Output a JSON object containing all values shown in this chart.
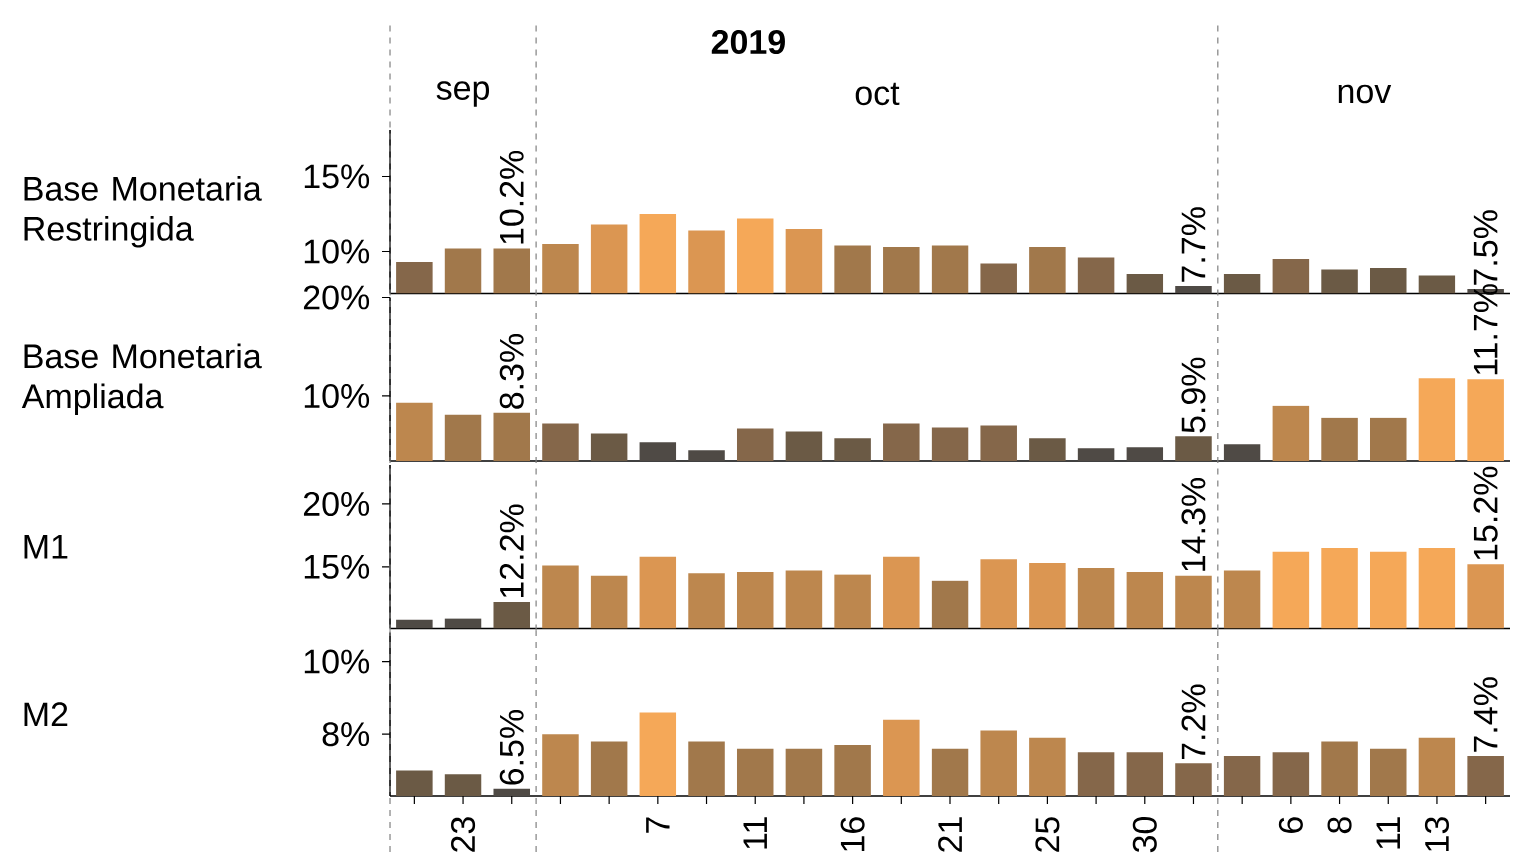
{
  "chart_data": [
    {
      "type": "bar",
      "ylabel": "Base Monetaria Restringida",
      "annotations": [
        "2019",
        "sep",
        "oct",
        "nov"
      ],
      "categories": [
        null,
        "23",
        null,
        null,
        null,
        "7",
        null,
        "11",
        null,
        "16",
        null,
        "21",
        null,
        "25",
        null,
        "30",
        null,
        null,
        "6",
        "8",
        "11",
        "13",
        null
      ],
      "values": [
        9.3,
        10.2,
        10.2,
        10.5,
        11.8,
        12.5,
        11.4,
        12.2,
        11.5,
        10.4,
        10.3,
        10.4,
        9.2,
        10.3,
        9.6,
        8.5,
        7.7,
        8.5,
        9.5,
        8.8,
        8.9,
        8.4,
        7.5
      ],
      "colors": [
        "#85674a",
        "#a1784b",
        "#a1784b",
        "#bd874e",
        "#db9652",
        "#f5a858",
        "#db9652",
        "#f5a858",
        "#db9652",
        "#a1784b",
        "#a1784b",
        "#a1784b",
        "#85674a",
        "#a1784b",
        "#85674a",
        "#6b5a45",
        "#4f4a45",
        "#6b5a45",
        "#85674a",
        "#6b5a45",
        "#6b5a45",
        "#6b5a45",
        "#4f4a45"
      ],
      "value_labels": [
        null,
        null,
        "10.2%",
        null,
        null,
        null,
        null,
        null,
        null,
        null,
        null,
        null,
        null,
        null,
        null,
        null,
        "7.7%",
        null,
        null,
        null,
        null,
        null,
        "7.5%"
      ],
      "ylim": [
        7.2,
        18.1
      ],
      "yticks": [
        {
          "value": 10,
          "label": "10%"
        },
        {
          "value": 15,
          "label": "15%"
        }
      ],
      "tick_labels": "y"
    },
    {
      "type": "bar",
      "ylabel": "Base Monetaria Ampliada",
      "categories": [
        null,
        "23",
        null,
        null,
        null,
        "7",
        null,
        "11",
        null,
        "16",
        null,
        "21",
        null,
        "25",
        null,
        "30",
        null,
        null,
        "6",
        "8",
        "11",
        "13",
        null
      ],
      "values": [
        9.3,
        8.1,
        8.3,
        7.2,
        6.2,
        5.3,
        4.5,
        6.7,
        6.4,
        5.7,
        7.2,
        6.8,
        7.0,
        5.7,
        4.7,
        4.8,
        5.9,
        5.1,
        9.0,
        7.8,
        7.8,
        11.8,
        11.7
      ],
      "colors": [
        "#bd874e",
        "#a1784b",
        "#a1784b",
        "#85674a",
        "#6b5a45",
        "#4f4a45",
        "#4f4a45",
        "#85674a",
        "#6b5a45",
        "#6b5a45",
        "#85674a",
        "#85674a",
        "#85674a",
        "#6b5a45",
        "#4f4a45",
        "#4f4a45",
        "#6b5a45",
        "#4f4a45",
        "#bd874e",
        "#a1784b",
        "#a1784b",
        "#f5a858",
        "#f5a858"
      ],
      "value_labels": [
        null,
        null,
        "8.3%",
        null,
        null,
        null,
        null,
        null,
        null,
        null,
        null,
        null,
        null,
        null,
        null,
        null,
        "5.9%",
        null,
        null,
        null,
        null,
        null,
        "11.7%"
      ],
      "ylim": [
        3.4,
        20
      ],
      "yticks": [
        {
          "value": 10,
          "label": "10%"
        },
        {
          "value": 20,
          "label": "20%"
        }
      ],
      "tick_labels": "y"
    },
    {
      "type": "bar",
      "ylabel": "M1",
      "categories": [
        null,
        "23",
        null,
        null,
        null,
        "7",
        null,
        "11",
        null,
        "16",
        null,
        "21",
        null,
        "25",
        null,
        "30",
        null,
        null,
        "6",
        "8",
        "11",
        "13",
        null
      ],
      "values": [
        10.8,
        10.9,
        12.2,
        15.1,
        14.3,
        15.8,
        14.5,
        14.6,
        14.7,
        14.4,
        15.8,
        13.9,
        15.6,
        15.3,
        14.9,
        14.6,
        14.3,
        14.7,
        16.2,
        16.5,
        16.2,
        16.5,
        15.2
      ],
      "colors": [
        "#4f4a45",
        "#4f4a45",
        "#6b5a45",
        "#bd874e",
        "#bd874e",
        "#db9652",
        "#bd874e",
        "#bd874e",
        "#bd874e",
        "#bd874e",
        "#db9652",
        "#a1784b",
        "#db9652",
        "#db9652",
        "#bd874e",
        "#bd874e",
        "#bd874e",
        "#bd874e",
        "#f5a858",
        "#f5a858",
        "#f5a858",
        "#f5a858",
        "#db9652"
      ],
      "value_labels": [
        null,
        null,
        "12.2%",
        null,
        null,
        null,
        null,
        null,
        null,
        null,
        null,
        null,
        null,
        null,
        null,
        null,
        "14.3%",
        null,
        null,
        null,
        null,
        null,
        "15.2%"
      ],
      "ylim": [
        10.1,
        23.1
      ],
      "yticks": [
        {
          "value": 15,
          "label": "15%"
        },
        {
          "value": 20,
          "label": "20%"
        }
      ],
      "tick_labels": "y"
    },
    {
      "type": "bar",
      "ylabel": "M2",
      "categories": [
        null,
        "23",
        null,
        null,
        null,
        "7",
        null,
        "11",
        null,
        "16",
        null,
        "21",
        null,
        "25",
        null,
        "30",
        null,
        null,
        "6",
        "8",
        "11",
        "13",
        null
      ],
      "values": [
        7.0,
        6.9,
        6.5,
        8.0,
        7.8,
        8.6,
        7.8,
        7.6,
        7.6,
        7.7,
        8.4,
        7.6,
        8.1,
        7.9,
        7.5,
        7.5,
        7.2,
        7.4,
        7.5,
        7.8,
        7.6,
        7.9,
        7.4
      ],
      "colors": [
        "#6b5a45",
        "#6b5a45",
        "#4f4a45",
        "#bd874e",
        "#a1784b",
        "#f5a858",
        "#a1784b",
        "#a1784b",
        "#a1784b",
        "#a1784b",
        "#db9652",
        "#a1784b",
        "#bd874e",
        "#bd874e",
        "#85674a",
        "#85674a",
        "#85674a",
        "#85674a",
        "#85674a",
        "#a1784b",
        "#a1784b",
        "#bd874e",
        "#85674a"
      ],
      "value_labels": [
        null,
        null,
        "6.5%",
        null,
        null,
        null,
        null,
        null,
        null,
        null,
        null,
        null,
        null,
        null,
        null,
        null,
        "7.2%",
        null,
        null,
        null,
        null,
        null,
        "7.4%"
      ],
      "ylim": [
        6.3,
        10.8
      ],
      "yticks": [
        {
          "value": 8,
          "label": "8%"
        },
        {
          "value": 10,
          "label": "10%"
        }
      ]
    }
  ]
}
